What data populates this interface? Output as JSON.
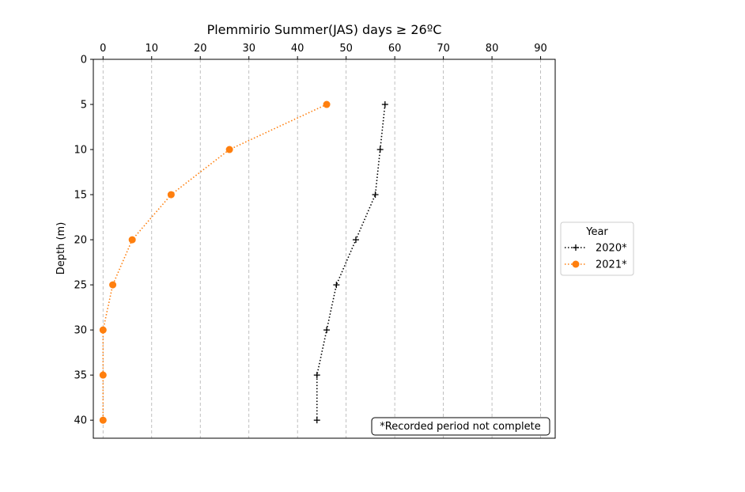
{
  "chart_data": {
    "type": "line",
    "title": "Plemmirio Summer(JAS) days ≥ 26ºC",
    "xlabel": "",
    "ylabel": "Depth (m)",
    "xlim": [
      -2,
      93
    ],
    "ylim": [
      42,
      0
    ],
    "x_axis_position": "top",
    "y_inverted": true,
    "x_ticks": [
      0,
      10,
      20,
      30,
      40,
      50,
      60,
      70,
      80,
      90
    ],
    "y_ticks": [
      0,
      5,
      10,
      15,
      20,
      25,
      30,
      35,
      40
    ],
    "grid": {
      "x": true,
      "y": false,
      "style": "dashed"
    },
    "series": [
      {
        "name": "2020*",
        "color": "#000000",
        "marker": "plus",
        "linestyle": "dotted",
        "points": [
          {
            "x": 58,
            "y": 5
          },
          {
            "x": 57,
            "y": 10
          },
          {
            "x": 56,
            "y": 15
          },
          {
            "x": 52,
            "y": 20
          },
          {
            "x": 48,
            "y": 25
          },
          {
            "x": 46,
            "y": 30
          },
          {
            "x": 44,
            "y": 35
          },
          {
            "x": 44,
            "y": 40
          }
        ]
      },
      {
        "name": "2021*",
        "color": "#ff7f0e",
        "marker": "circle",
        "linestyle": "dotted",
        "points": [
          {
            "x": 46,
            "y": 5
          },
          {
            "x": 26,
            "y": 10
          },
          {
            "x": 14,
            "y": 15
          },
          {
            "x": 6,
            "y": 20
          },
          {
            "x": 2,
            "y": 25
          },
          {
            "x": 0,
            "y": 30
          },
          {
            "x": 0,
            "y": 35
          },
          {
            "x": 0,
            "y": 40
          }
        ]
      }
    ],
    "legend": {
      "title": "Year",
      "placement": "outside-right"
    },
    "annotation": "*Recorded period not complete"
  }
}
